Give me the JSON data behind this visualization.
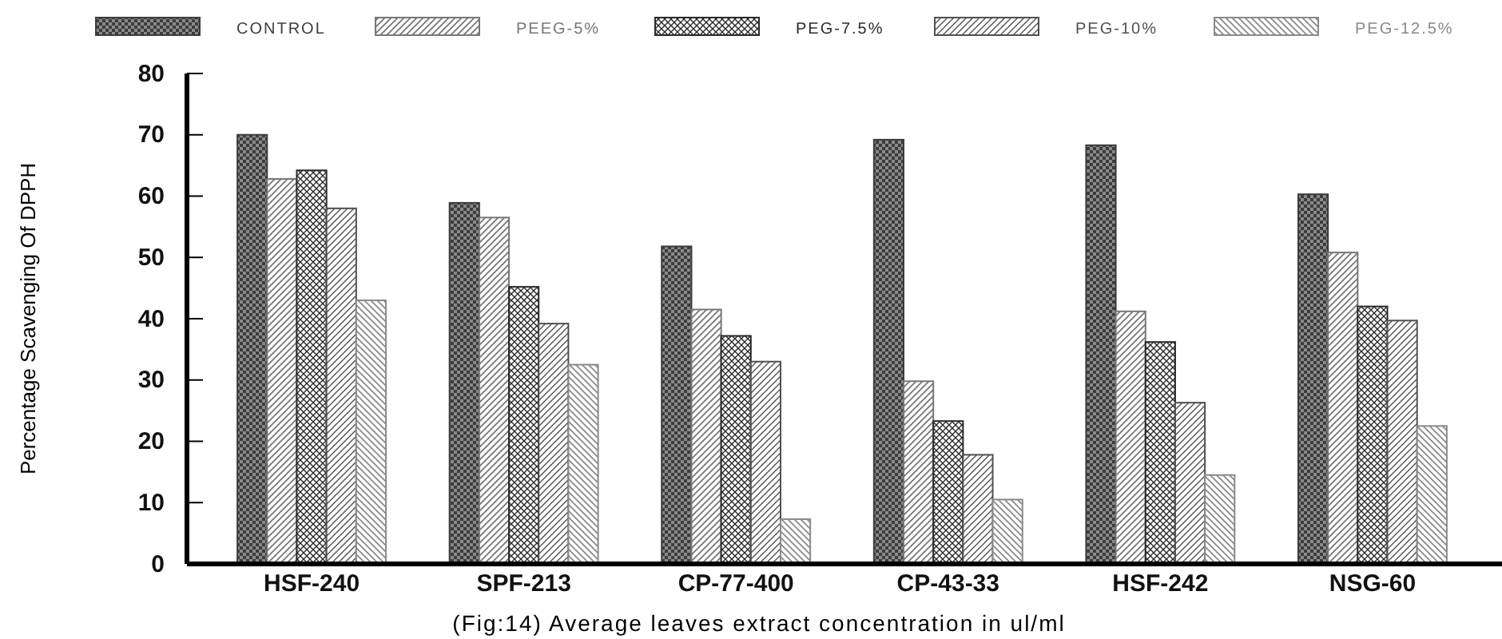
{
  "chart_data": {
    "type": "bar",
    "xlabel": "(Fig:14) Average leaves extract concentration in ul/ml",
    "ylabel": "Percentage Scavenging Of DPPH",
    "categories": [
      "HSF-240",
      "SPF-213",
      "CP-77-400",
      "CP-43-33",
      "HSF-242",
      "NSG-60"
    ],
    "series": [
      {
        "name": "CONTROL",
        "color": "#3c3c3c",
        "values": [
          70,
          58.9,
          51.8,
          69.2,
          68.3,
          60.3
        ]
      },
      {
        "name": "PEEG-5%",
        "color": "#777777",
        "values": [
          62.8,
          56.5,
          41.5,
          29.8,
          41.2,
          50.8
        ]
      },
      {
        "name": "PEG-7.5%",
        "color": "#2a2a2a",
        "values": [
          64.2,
          45.2,
          37.2,
          23.3,
          36.2,
          42
        ]
      },
      {
        "name": "PEG-10%",
        "color": "#505050",
        "values": [
          58,
          39.2,
          33,
          17.8,
          26.3,
          39.7
        ]
      },
      {
        "name": "PEG-12.5%",
        "color": "#8a8a8a",
        "values": [
          43,
          32.5,
          7.3,
          10.5,
          14.5,
          22.5
        ]
      }
    ],
    "ylim": [
      0,
      80
    ],
    "yticks": [
      0,
      10,
      20,
      30,
      40,
      50,
      60,
      70,
      80
    ],
    "grid": false,
    "legend": "top"
  }
}
